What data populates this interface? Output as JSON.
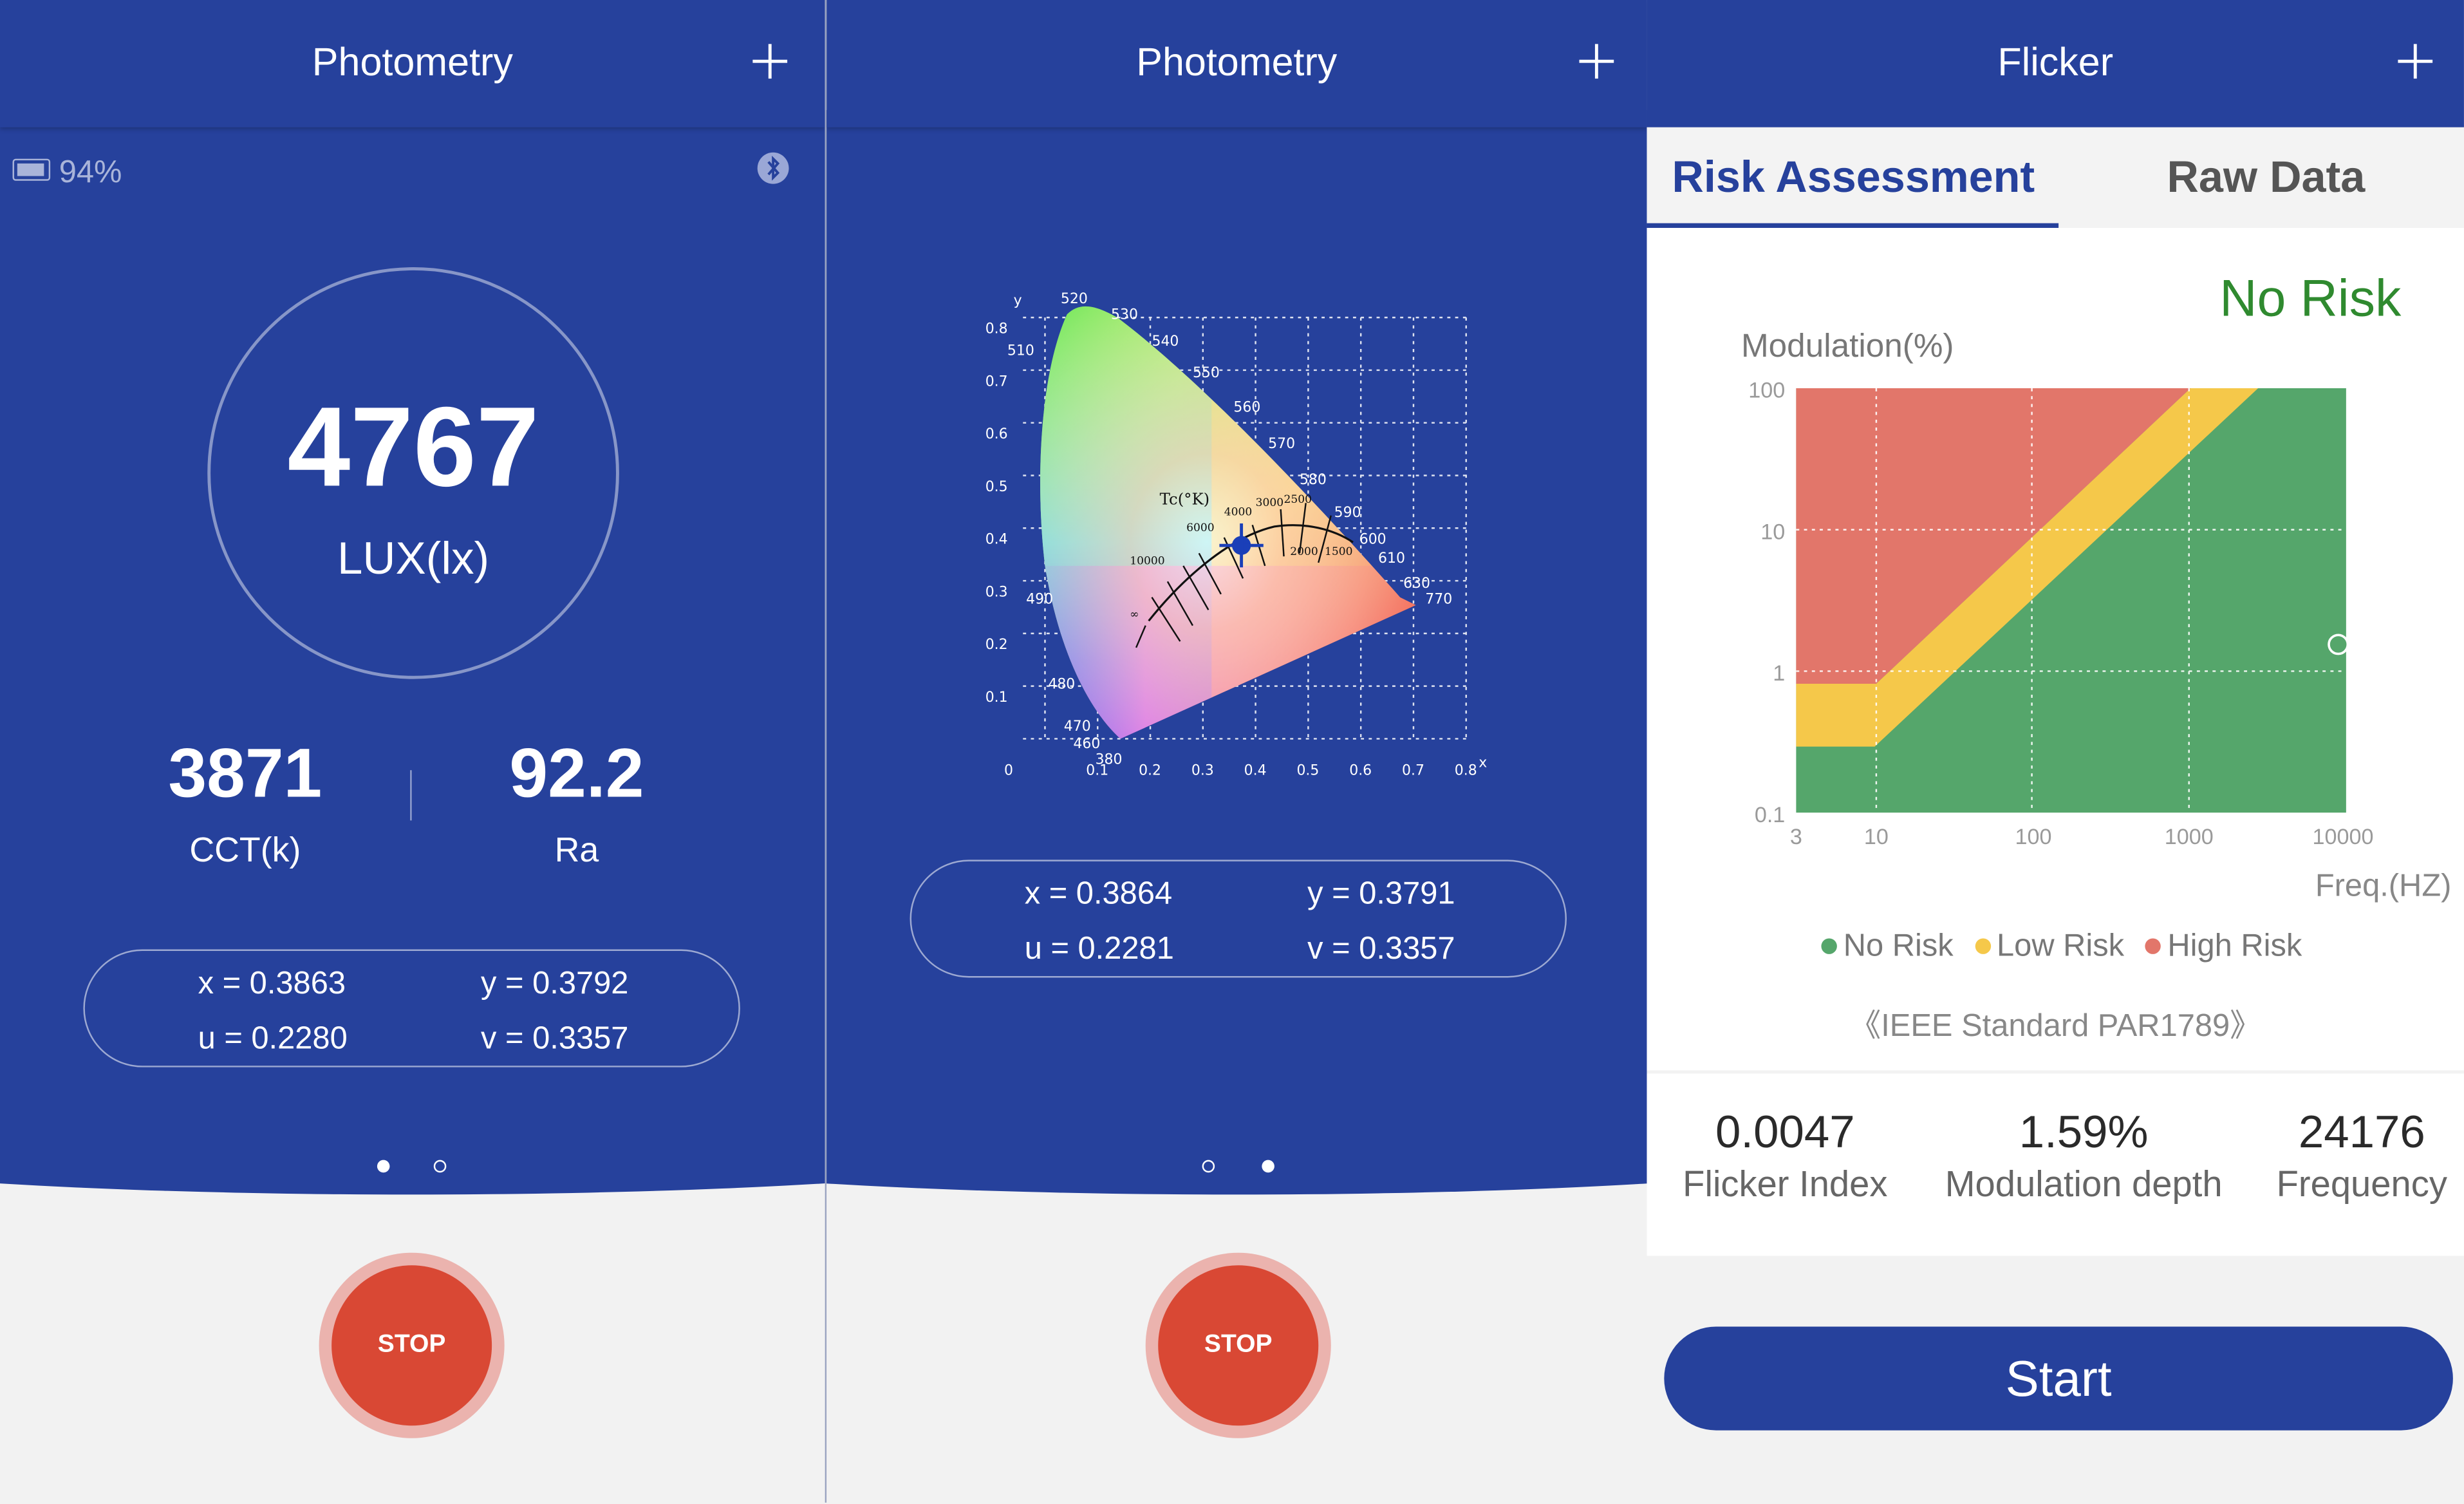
{
  "panel1": {
    "title": "Photometry",
    "battery": "94%",
    "lux_value": "4767",
    "lux_unit": "LUX(lx)",
    "cct_value": "3871",
    "cct_label": "CCT(k)",
    "ra_value": "92.2",
    "ra_label": "Ra",
    "x": "x = 0.3863",
    "y": "y = 0.3792",
    "u": "u = 0.2280",
    "v": "v = 0.3357",
    "stop_label": "STOP",
    "page_index": 1
  },
  "panel2": {
    "title": "Photometry",
    "x": "x = 0.3864",
    "y": "y = 0.3791",
    "u": "u = 0.2281",
    "v": "v = 0.3357",
    "stop_label": "STOP",
    "page_index": 2,
    "cie": {
      "x_axis_label": "x",
      "y_axis_label": "y",
      "x_ticks": [
        "0",
        "0.1",
        "0.2",
        "0.3",
        "0.4",
        "0.5",
        "0.6",
        "0.7",
        "0.8"
      ],
      "y_ticks": [
        "0.8",
        "0.7",
        "0.6",
        "0.5",
        "0.4",
        "0.3",
        "0.2",
        "0.1"
      ],
      "wavelengths": [
        "520",
        "530",
        "510",
        "540",
        "550",
        "560",
        "570",
        "580",
        "590",
        "600",
        "610",
        "630",
        "770",
        "490",
        "480",
        "470",
        "460",
        "380"
      ],
      "cct_title": "Tc(°K)",
      "cct_labels": [
        "4000",
        "3000",
        "2500",
        "6000",
        "2000",
        "1500",
        "10000",
        "∞"
      ]
    }
  },
  "panel3": {
    "title": "Flicker",
    "tabs": [
      "Risk Assessment",
      "Raw Data"
    ],
    "active_tab": "Risk Assessment",
    "risk_result": "No Risk",
    "risk_color": "#2f8a2f",
    "ylabel": "Modulation(%)",
    "y_ticks": [
      "100",
      "10",
      "1",
      "0.1"
    ],
    "x_ticks": [
      "3",
      "10",
      "100",
      "1000",
      "10000"
    ],
    "xlabel": "Freq.(HZ)",
    "legend": [
      "No Risk",
      "Low Risk",
      "High Risk"
    ],
    "legend_colors": [
      "#55a66b",
      "#f5c84a",
      "#e2766a"
    ],
    "standard": "《IEEE Standard PAR1789》",
    "stats": [
      {
        "value": "0.0047",
        "label": "Flicker Index"
      },
      {
        "value": "1.59%",
        "label": "Modulation depth"
      },
      {
        "value": "24176",
        "label": "Frequency"
      }
    ],
    "start_label": "Start"
  },
  "colors": {
    "primary": "#26419c",
    "stop": "#d94834",
    "no_risk": "#55a66b",
    "low_risk": "#f5c84a",
    "high_risk": "#e2766a"
  }
}
